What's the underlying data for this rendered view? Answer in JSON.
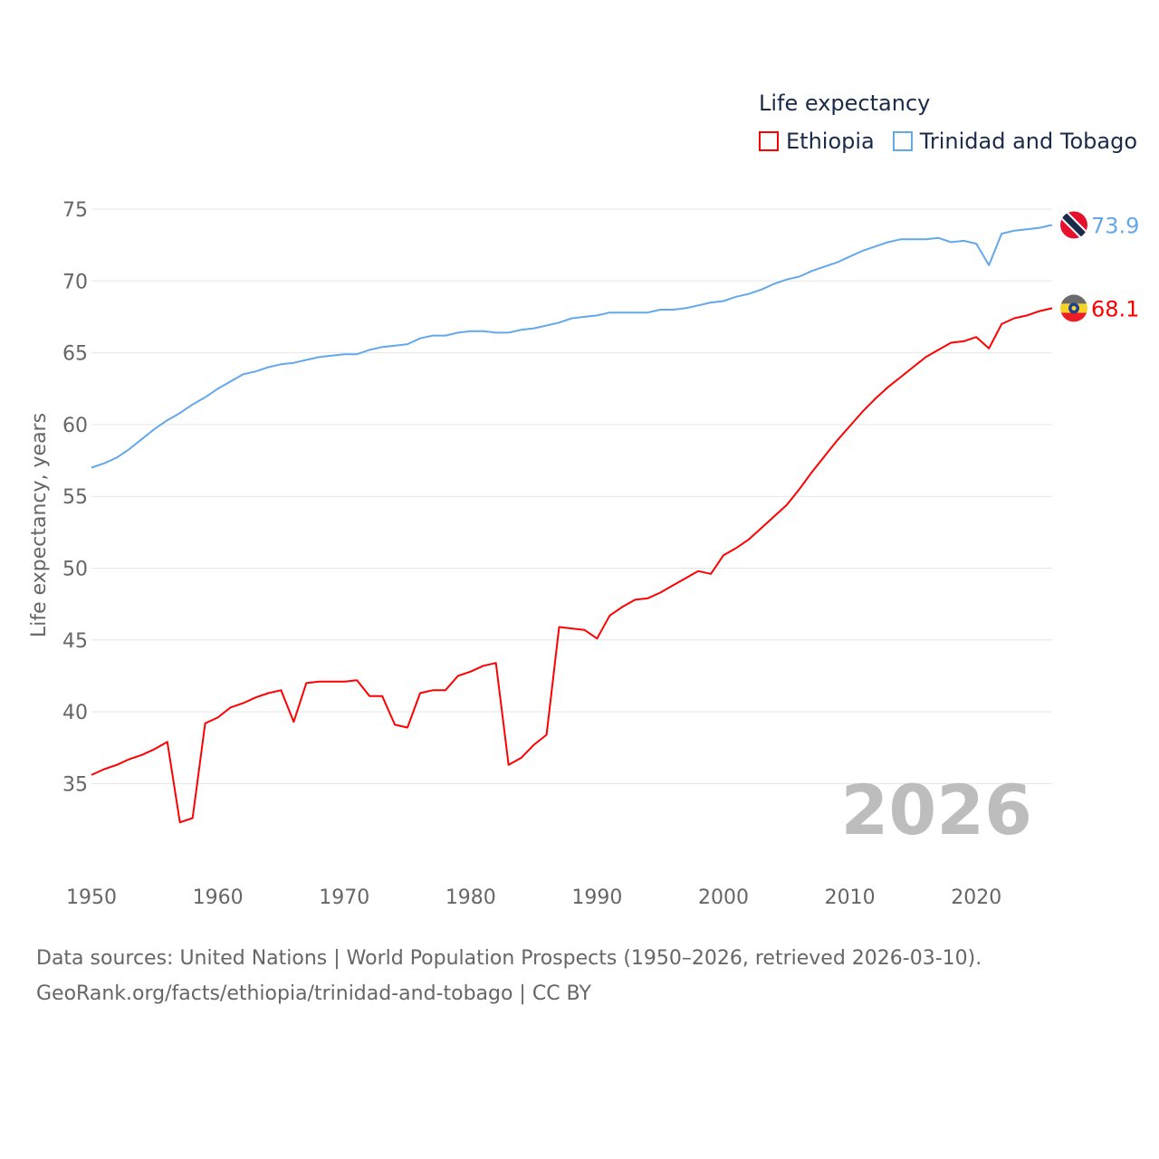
{
  "chart_data": {
    "type": "line",
    "title": "",
    "legend_title": "Life expectancy",
    "legend_placement": "top-right",
    "ylabel": "Life expectancy, years",
    "xlabel": "",
    "year_watermark": "2026",
    "ylim": [
      30.5,
      75
    ],
    "xlim": [
      1950,
      2026
    ],
    "grid": true,
    "y_ticks": [
      "35",
      "40",
      "45",
      "50",
      "55",
      "60",
      "65",
      "70",
      "75"
    ],
    "x_ticks": [
      "1950",
      "1960",
      "1970",
      "1980",
      "1990",
      "2000",
      "2010",
      "2020"
    ],
    "x": [
      1950,
      1951,
      1952,
      1953,
      1954,
      1955,
      1956,
      1957,
      1958,
      1959,
      1960,
      1961,
      1962,
      1963,
      1964,
      1965,
      1966,
      1967,
      1968,
      1969,
      1970,
      1971,
      1972,
      1973,
      1974,
      1975,
      1976,
      1977,
      1978,
      1979,
      1980,
      1981,
      1982,
      1983,
      1984,
      1985,
      1986,
      1987,
      1988,
      1989,
      1990,
      1991,
      1992,
      1993,
      1994,
      1995,
      1996,
      1997,
      1998,
      1999,
      2000,
      2001,
      2002,
      2003,
      2004,
      2005,
      2006,
      2007,
      2008,
      2009,
      2010,
      2011,
      2012,
      2013,
      2014,
      2015,
      2016,
      2017,
      2018,
      2019,
      2020,
      2021,
      2022,
      2023,
      2024,
      2025,
      2026
    ],
    "series": [
      {
        "name": "Ethiopia",
        "color": "#ff0000",
        "end_label": "68.1",
        "flag": "ethiopia-flag",
        "values": [
          35.6,
          36.0,
          36.3,
          36.7,
          37.0,
          37.4,
          37.9,
          32.3,
          32.6,
          39.2,
          39.6,
          40.3,
          40.6,
          41.0,
          41.3,
          41.5,
          39.3,
          42.0,
          42.1,
          42.1,
          42.1,
          42.2,
          41.1,
          41.1,
          39.1,
          38.9,
          41.3,
          41.5,
          41.5,
          42.5,
          42.8,
          43.2,
          43.4,
          36.3,
          36.8,
          37.7,
          38.4,
          45.9,
          45.8,
          45.7,
          45.1,
          46.7,
          47.3,
          47.8,
          47.9,
          48.3,
          48.8,
          49.3,
          49.8,
          49.6,
          50.9,
          51.4,
          52.0,
          52.8,
          53.6,
          54.4,
          55.5,
          56.7,
          57.8,
          58.9,
          59.9,
          60.9,
          61.8,
          62.6,
          63.3,
          64.0,
          64.7,
          65.2,
          65.7,
          65.8,
          66.1,
          65.3,
          67.0,
          67.4,
          67.6,
          67.9,
          68.1
        ]
      },
      {
        "name": "Trinidad and Tobago",
        "color": "#64a8ec",
        "end_label": "73.9",
        "flag": "trinidad-flag",
        "values": [
          57.0,
          57.3,
          57.7,
          58.3,
          59.0,
          59.7,
          60.3,
          60.8,
          61.4,
          61.9,
          62.5,
          63.0,
          63.5,
          63.7,
          64.0,
          64.2,
          64.3,
          64.5,
          64.7,
          64.8,
          64.9,
          64.9,
          65.2,
          65.4,
          65.5,
          65.6,
          66.0,
          66.2,
          66.2,
          66.4,
          66.5,
          66.5,
          66.4,
          66.4,
          66.6,
          66.7,
          66.9,
          67.1,
          67.4,
          67.5,
          67.6,
          67.8,
          67.8,
          67.8,
          67.8,
          68.0,
          68.0,
          68.1,
          68.3,
          68.5,
          68.6,
          68.9,
          69.1,
          69.4,
          69.8,
          70.1,
          70.3,
          70.7,
          71.0,
          71.3,
          71.7,
          72.1,
          72.4,
          72.7,
          72.9,
          72.9,
          72.9,
          73.0,
          72.7,
          72.8,
          72.6,
          71.1,
          73.3,
          73.5,
          73.6,
          73.7,
          73.9
        ]
      }
    ]
  },
  "footer": {
    "sources": "Data sources: United Nations | World Population Prospects (1950–2026, retrieved 2026-03-10).",
    "link": "GeoRank.org/facts/ethiopia/trinidad-and-tobago | CC BY"
  }
}
